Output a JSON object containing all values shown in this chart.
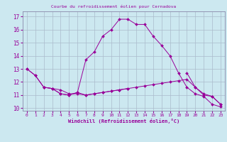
{
  "title": "Courbe du refroidissement éolien pour Cernadova",
  "xlabel": "Windchill (Refroidissement éolien,°C)",
  "bg_color": "#cce8f0",
  "line_color": "#990099",
  "grid_color": "#aabbcc",
  "xlim": [
    -0.5,
    23.5
  ],
  "ylim": [
    9.8,
    17.4
  ],
  "xticks": [
    0,
    1,
    2,
    3,
    4,
    5,
    6,
    7,
    8,
    9,
    10,
    11,
    12,
    13,
    14,
    15,
    16,
    17,
    18,
    19,
    20,
    21,
    22,
    23
  ],
  "yticks": [
    10,
    11,
    12,
    13,
    14,
    15,
    16,
    17
  ],
  "series": [
    {
      "x": [
        0,
        1,
        2,
        3,
        4,
        5,
        6,
        7,
        8,
        9,
        10,
        11,
        12,
        13,
        14,
        15,
        16,
        17,
        18,
        19,
        20,
        21,
        22,
        23
      ],
      "y": [
        13.0,
        12.5,
        11.6,
        11.5,
        11.1,
        11.0,
        11.2,
        11.0,
        11.1,
        11.2,
        11.3,
        11.4,
        11.5,
        11.6,
        11.7,
        11.8,
        11.9,
        12.0,
        12.1,
        12.2,
        11.6,
        11.0,
        10.9,
        10.3
      ]
    },
    {
      "x": [
        0,
        1,
        2,
        3,
        4,
        5,
        6,
        7,
        8,
        9,
        10,
        11,
        12,
        13,
        14,
        15,
        16,
        17,
        18,
        19,
        20,
        21,
        22,
        23
      ],
      "y": [
        13.0,
        12.5,
        11.6,
        11.5,
        11.1,
        11.0,
        11.2,
        13.7,
        14.3,
        15.5,
        16.0,
        16.8,
        16.8,
        16.4,
        16.4,
        15.5,
        14.8,
        14.0,
        12.7,
        11.6,
        11.1,
        10.9,
        10.3,
        10.1
      ]
    },
    {
      "x": [
        2,
        3,
        4,
        5,
        6,
        7,
        8,
        9,
        10,
        11,
        12
      ],
      "y": [
        11.6,
        11.5,
        11.4,
        11.1,
        11.1,
        11.0,
        11.1,
        11.2,
        11.3,
        11.4,
        11.5
      ]
    },
    {
      "x": [
        19,
        20,
        21,
        22,
        23
      ],
      "y": [
        12.7,
        11.6,
        11.1,
        10.9,
        10.3
      ]
    }
  ]
}
